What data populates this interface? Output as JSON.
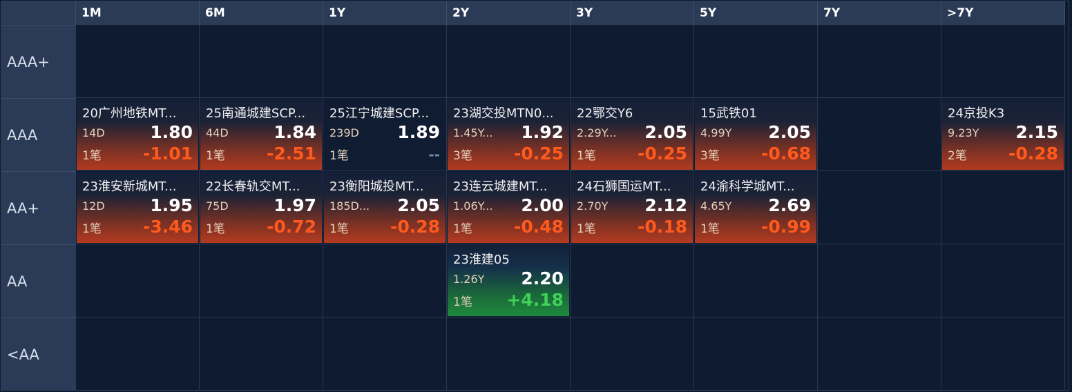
{
  "columns": [
    "1M",
    "6M",
    "1Y",
    "2Y",
    "3Y",
    "5Y",
    "7Y",
    ">7Y"
  ],
  "rows": [
    "AAA+",
    "AAA",
    "AA+",
    "AA",
    "<AA"
  ],
  "colors": {
    "negative": "#ff5a1e",
    "positive": "#3fd15a",
    "header_bg": "#2b3a56",
    "grid_bg": "#0f1b30"
  },
  "bonds": {
    "aaa_1m": {
      "name": "20广州地铁MT...",
      "term": "14D",
      "yield": "1.80",
      "count": "1笔",
      "change": "-1.01"
    },
    "aaa_6m": {
      "name": "25南通城建SCP...",
      "term": "44D",
      "yield": "1.84",
      "count": "1笔",
      "change": "-2.51"
    },
    "aaa_1y": {
      "name": "25江宁城建SCP...",
      "term": "239D",
      "yield": "1.89",
      "count": "1笔",
      "change": "--"
    },
    "aaa_2y": {
      "name": "23湖交投MTN0...",
      "term": "1.45Y...",
      "yield": "1.92",
      "count": "3笔",
      "change": "-0.25"
    },
    "aaa_3y": {
      "name": "22鄂交Y6",
      "term": "2.29Y...",
      "yield": "2.05",
      "count": "1笔",
      "change": "-0.25"
    },
    "aaa_5y": {
      "name": "15武铁01",
      "term": "4.99Y",
      "yield": "2.05",
      "count": "3笔",
      "change": "-0.68"
    },
    "aaa_7yp": {
      "name": "24京投K3",
      "term": "9.23Y",
      "yield": "2.15",
      "count": "2笔",
      "change": "-0.28"
    },
    "aap_1m": {
      "name": "23淮安新城MT...",
      "term": "12D",
      "yield": "1.95",
      "count": "1笔",
      "change": "-3.46"
    },
    "aap_6m": {
      "name": "22长春轨交MT...",
      "term": "75D",
      "yield": "1.97",
      "count": "1笔",
      "change": "-0.72"
    },
    "aap_1y": {
      "name": "23衡阳城投MT...",
      "term": "185D...",
      "yield": "2.05",
      "count": "1笔",
      "change": "-0.28"
    },
    "aap_2y": {
      "name": "23连云城建MT...",
      "term": "1.06Y...",
      "yield": "2.00",
      "count": "1笔",
      "change": "-0.48"
    },
    "aap_3y": {
      "name": "24石狮国运MT...",
      "term": "2.70Y",
      "yield": "2.12",
      "count": "1笔",
      "change": "-0.18"
    },
    "aap_5y": {
      "name": "24渝科学城MT...",
      "term": "4.65Y",
      "yield": "2.69",
      "count": "1笔",
      "change": "-0.99"
    },
    "aa_2y": {
      "name": "23淮建05",
      "term": "1.26Y",
      "yield": "2.20",
      "count": "1笔",
      "change": "+4.18"
    }
  }
}
